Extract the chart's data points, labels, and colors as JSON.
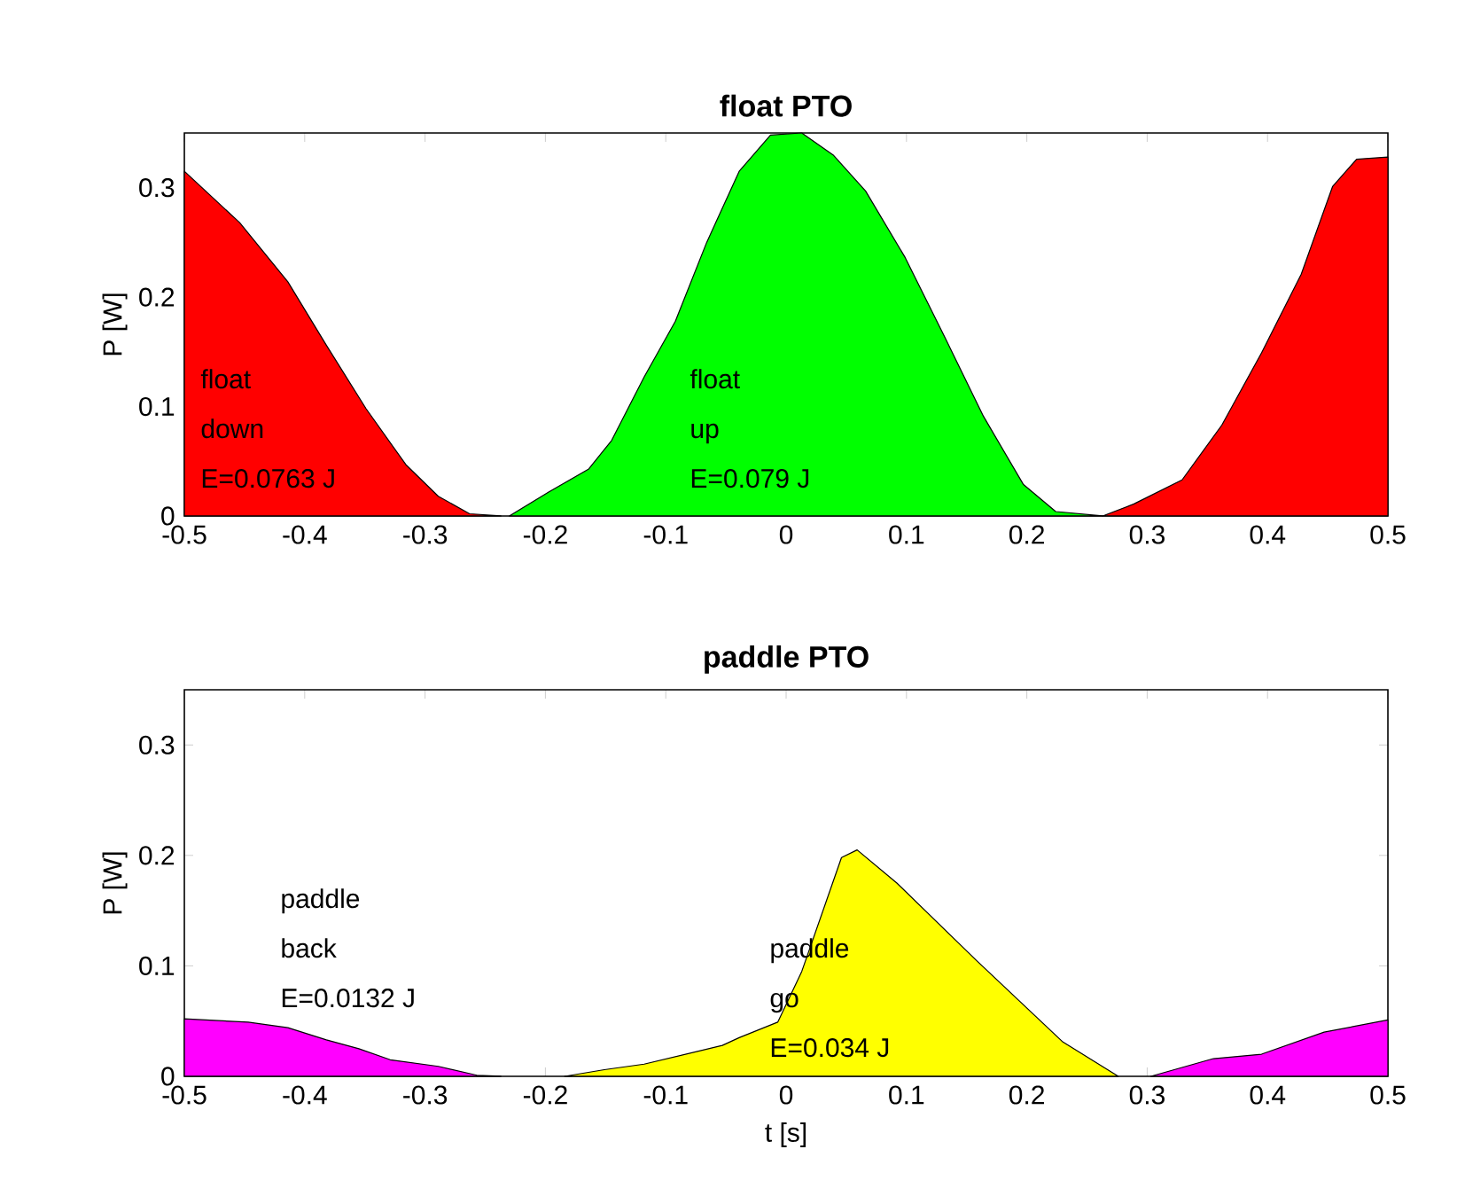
{
  "chart_data": [
    {
      "type": "area",
      "title": "float PTO",
      "ylabel": "P [W]",
      "xlim": [
        -0.5,
        0.5
      ],
      "ylim": [
        0,
        0.35
      ],
      "xticks": [
        -0.5,
        -0.4,
        -0.3,
        -0.2,
        -0.1,
        0,
        0.1,
        0.2,
        0.3,
        0.4,
        0.5
      ],
      "yticks": [
        0,
        0.1,
        0.2,
        0.3
      ],
      "series": [
        {
          "color": "#ff0000",
          "x": [
            -0.5,
            -0.454,
            -0.414,
            -0.382,
            -0.349,
            -0.316,
            -0.289,
            -0.263,
            -0.237
          ],
          "values": [
            0.315,
            0.268,
            0.214,
            0.156,
            0.098,
            0.047,
            0.018,
            0.002,
            0
          ]
        },
        {
          "color": "#00ff00",
          "x": [
            -0.23,
            -0.197,
            -0.164,
            -0.145,
            -0.118,
            -0.092,
            -0.066,
            -0.039,
            -0.013,
            0.013,
            0.039,
            0.066,
            0.099,
            0.132,
            0.164,
            0.197,
            0.224,
            0.263
          ],
          "values": [
            0,
            0.022,
            0.043,
            0.069,
            0.127,
            0.178,
            0.25,
            0.315,
            0.348,
            0.35,
            0.33,
            0.297,
            0.236,
            0.163,
            0.091,
            0.029,
            0.004,
            0
          ]
        },
        {
          "color": "#ff0000",
          "x": [
            0.263,
            0.289,
            0.329,
            0.362,
            0.395,
            0.428,
            0.454,
            0.474,
            0.5
          ],
          "values": [
            0,
            0.011,
            0.033,
            0.083,
            0.149,
            0.221,
            0.301,
            0.326,
            0.328
          ]
        }
      ],
      "annotations": [
        "float",
        "down",
        "E=0.0763 J",
        "float",
        "up",
        "E=0.079 J"
      ]
    },
    {
      "type": "area",
      "title": "paddle PTO",
      "ylabel": "P [W]",
      "xlabel": "t [s]",
      "xlim": [
        -0.5,
        0.5
      ],
      "ylim": [
        0,
        0.35
      ],
      "xticks": [
        -0.5,
        -0.4,
        -0.3,
        -0.2,
        -0.1,
        0,
        0.1,
        0.2,
        0.3,
        0.4,
        0.5
      ],
      "yticks": [
        0,
        0.1,
        0.2,
        0.3
      ],
      "series": [
        {
          "color": "#ff00ff",
          "x": [
            -0.5,
            -0.447,
            -0.414,
            -0.382,
            -0.355,
            -0.329,
            -0.289,
            -0.257,
            -0.237
          ],
          "values": [
            0.052,
            0.049,
            0.044,
            0.033,
            0.025,
            0.015,
            0.009,
            0.001,
            0
          ]
        },
        {
          "color": "#ffff00",
          "x": [
            -0.184,
            -0.151,
            -0.118,
            -0.053,
            -0.039,
            -0.007,
            0.013,
            0.046,
            0.059,
            0.092,
            0.158,
            0.23,
            0.276
          ],
          "values": [
            0,
            0.006,
            0.011,
            0.028,
            0.035,
            0.049,
            0.095,
            0.198,
            0.205,
            0.175,
            0.105,
            0.031,
            0
          ]
        },
        {
          "color": "#ff00ff",
          "x": [
            0.303,
            0.355,
            0.395,
            0.447,
            0.5
          ],
          "values": [
            0,
            0.016,
            0.02,
            0.04,
            0.051
          ]
        }
      ],
      "annotations": [
        "paddle",
        "back",
        "E=0.0132 J",
        "paddle",
        "go",
        "E=0.034 J"
      ]
    }
  ]
}
